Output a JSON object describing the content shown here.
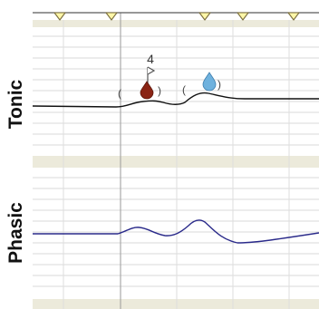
{
  "panels": [
    {
      "key": "tonic",
      "label": "Tonic"
    },
    {
      "key": "phasic",
      "label": "Phasic"
    }
  ],
  "tonic_annotation": {
    "count": "4"
  },
  "colors": {
    "background": "#ffffff",
    "marker_fill": "#fff7a8",
    "marker_stroke": "#7a6e3e",
    "grid": "#d8d8d8",
    "band": "#eceadb",
    "tonic_line": "#111111",
    "phasic_line": "#2a2a8a",
    "cursor_line": "#9a9a9a",
    "dark_drop": "#8a2414",
    "light_drop": "#6fb2de"
  },
  "icons": [
    "event-marker-icon",
    "flag-icon",
    "dark-drop-icon",
    "light-drop-icon"
  ]
}
